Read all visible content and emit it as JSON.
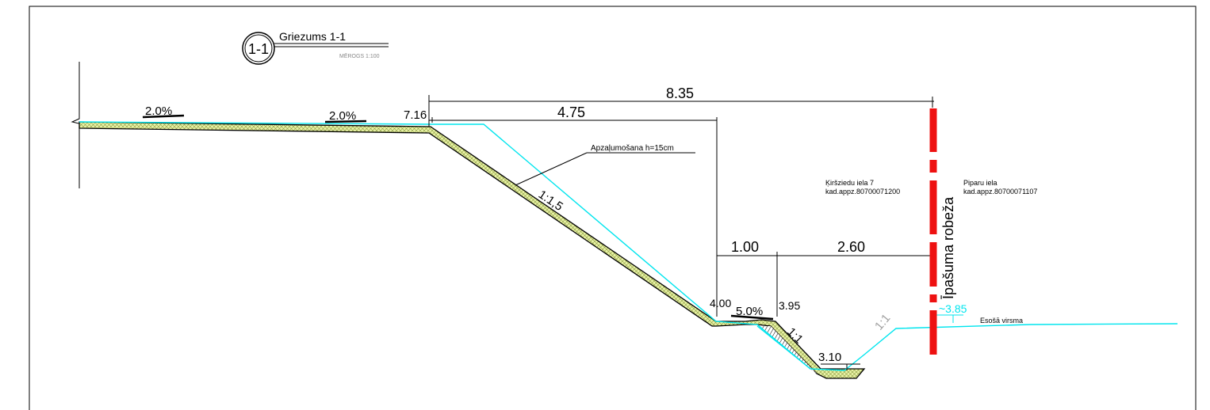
{
  "title_block": {
    "badge": "1-1",
    "title": "Griezums 1-1",
    "scale": "MĒROGS 1:100"
  },
  "slopes": {
    "left_1": "2.0%",
    "left_2": "2.0%",
    "mid": "5.0%",
    "embankment": "1:1,5",
    "ditch": "1:1",
    "right": "1:1"
  },
  "dimensions": {
    "total": "8.35",
    "slope_width": "4.75",
    "berm": "1.00",
    "ditch": "2.60"
  },
  "elevations": {
    "top": "7.16",
    "berm_left": "4.00",
    "berm_right": "3.95",
    "ditch_bottom": "3.10",
    "existing": "~3.85"
  },
  "annotations": {
    "greening": "Apzaļumošana h=15cm",
    "existing_surface": "Esošā virsma",
    "boundary": "Īpašuma robeža"
  },
  "parcels": {
    "left": {
      "street": "Ķiršziedu iela 7",
      "cadastre": "kad.appz.80700071200"
    },
    "right": {
      "street": "Piparu iela",
      "cadastre": "kad.appz.80700071107"
    }
  },
  "colors": {
    "surface_line": "#00e5ee",
    "boundary": "#ee1111",
    "topsoil_fill": "#e9f2a6",
    "grey_text": "#a0a0a0"
  }
}
